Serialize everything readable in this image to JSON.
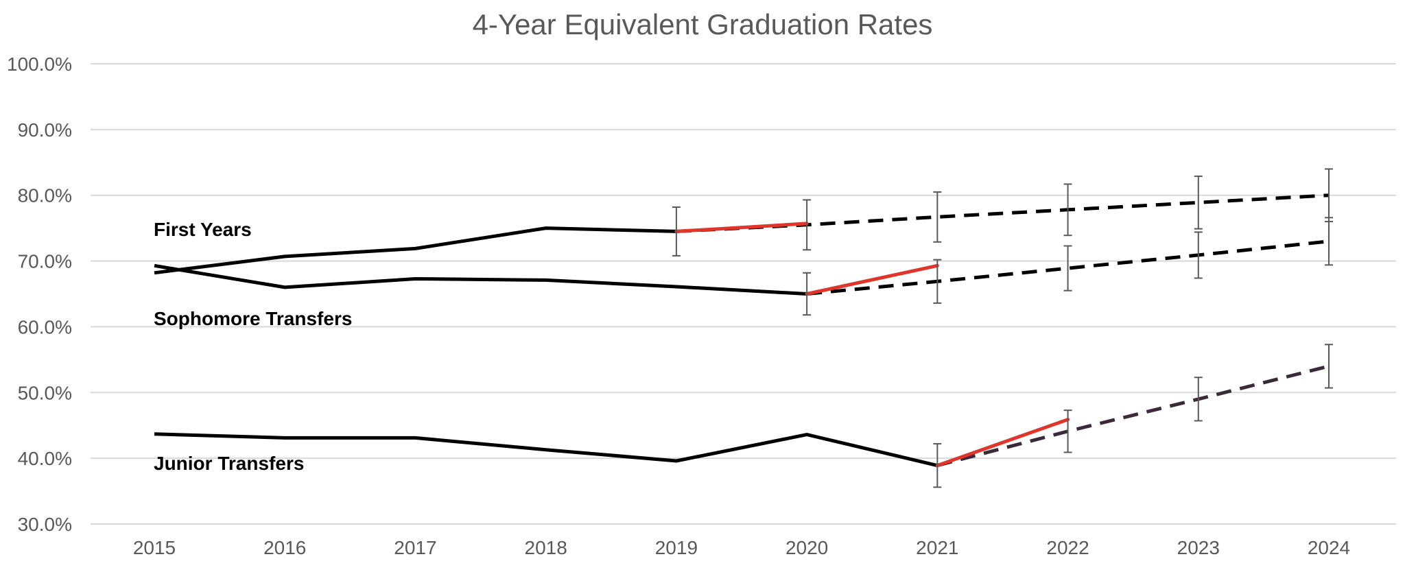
{
  "chart_data": {
    "type": "line",
    "title": "4-Year Equivalent Graduation Rates",
    "xlabel": "",
    "ylabel": "",
    "ylim": [
      30,
      100
    ],
    "y_tick_values": [
      30,
      40,
      50,
      60,
      70,
      80,
      90,
      100
    ],
    "y_tick_labels": [
      "30.0%",
      "40.0%",
      "50.0%",
      "60.0%",
      "70.0%",
      "80.0%",
      "90.0%",
      "100.0%"
    ],
    "categories": [
      "2015",
      "2016",
      "2017",
      "2018",
      "2019",
      "2020",
      "2021",
      "2022",
      "2023",
      "2024"
    ],
    "grid": true,
    "colors": {
      "actual": "#000000",
      "recent": "#e0352b",
      "projection": "#000000",
      "projection_junior": "#3a2a3a",
      "error_bar": "#595959"
    },
    "series": [
      {
        "name": "First Years",
        "actual": [
          68.2,
          70.7,
          71.9,
          75.0,
          74.5,
          null,
          null,
          null,
          null,
          null
        ],
        "recent": [
          null,
          null,
          null,
          null,
          74.5,
          75.7,
          null,
          null,
          null,
          null
        ],
        "projection": [
          null,
          null,
          null,
          null,
          74.5,
          75.5,
          76.7,
          77.8,
          78.9,
          80.0
        ],
        "error": [
          null,
          null,
          null,
          null,
          3.7,
          3.8,
          3.8,
          3.9,
          4.0,
          4.0
        ]
      },
      {
        "name": "Sophomore Transfers",
        "actual": [
          69.3,
          66.0,
          67.3,
          67.1,
          66.1,
          65.0,
          null,
          null,
          null,
          null
        ],
        "recent": [
          null,
          null,
          null,
          null,
          null,
          65.0,
          69.3,
          null,
          null,
          null
        ],
        "projection": [
          null,
          null,
          null,
          null,
          null,
          65.0,
          66.9,
          68.9,
          70.9,
          73.0
        ],
        "error": [
          null,
          null,
          null,
          null,
          null,
          3.2,
          3.3,
          3.4,
          3.5,
          3.6
        ]
      },
      {
        "name": "Junior Transfers",
        "actual": [
          43.7,
          43.1,
          43.1,
          41.3,
          39.6,
          43.6,
          38.9,
          null,
          null,
          null
        ],
        "recent": [
          null,
          null,
          null,
          null,
          null,
          null,
          38.9,
          45.9,
          null,
          null
        ],
        "projection": [
          null,
          null,
          null,
          null,
          null,
          null,
          38.9,
          44.1,
          49.0,
          54.0
        ],
        "error": [
          null,
          null,
          null,
          null,
          null,
          null,
          3.3,
          3.2,
          3.3,
          3.3
        ]
      }
    ]
  }
}
